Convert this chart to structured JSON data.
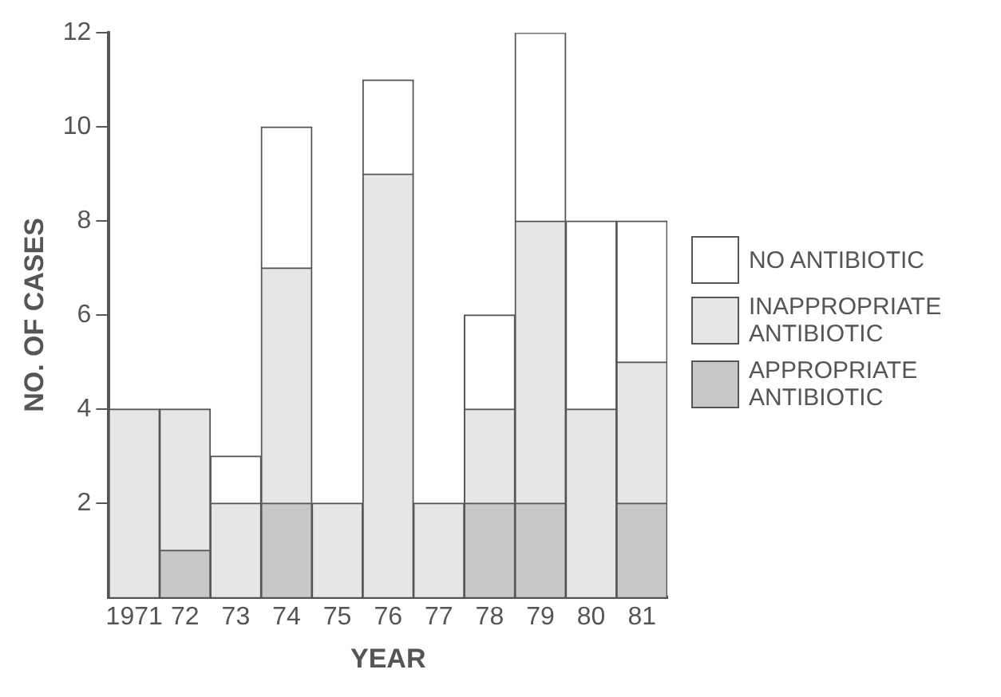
{
  "chart_data": {
    "type": "bar",
    "stacked": true,
    "xlabel": "YEAR",
    "ylabel": "NO. OF CASES",
    "categories": [
      "1971",
      "72",
      "73",
      "74",
      "75",
      "76",
      "77",
      "78",
      "79",
      "80",
      "81"
    ],
    "series": [
      {
        "name": "APPROPRIATE ANTIBIOTIC",
        "color": "#c8c8c8",
        "values": [
          0,
          1,
          0,
          2,
          0,
          0,
          0,
          2,
          2,
          0,
          2
        ]
      },
      {
        "name": "INAPPROPRIATE ANTIBIOTIC",
        "color": "#e6e6e6",
        "values": [
          4,
          3,
          2,
          5,
          2,
          9,
          2,
          2,
          6,
          4,
          3
        ]
      },
      {
        "name": "NO ANTIBIOTIC",
        "color": "#ffffff",
        "values": [
          0,
          0,
          1,
          3,
          0,
          2,
          0,
          2,
          4,
          4,
          3
        ]
      }
    ],
    "ylim": [
      0,
      12
    ],
    "yticks": [
      2,
      4,
      6,
      8,
      10,
      12
    ],
    "grid": false,
    "legend": "right"
  }
}
